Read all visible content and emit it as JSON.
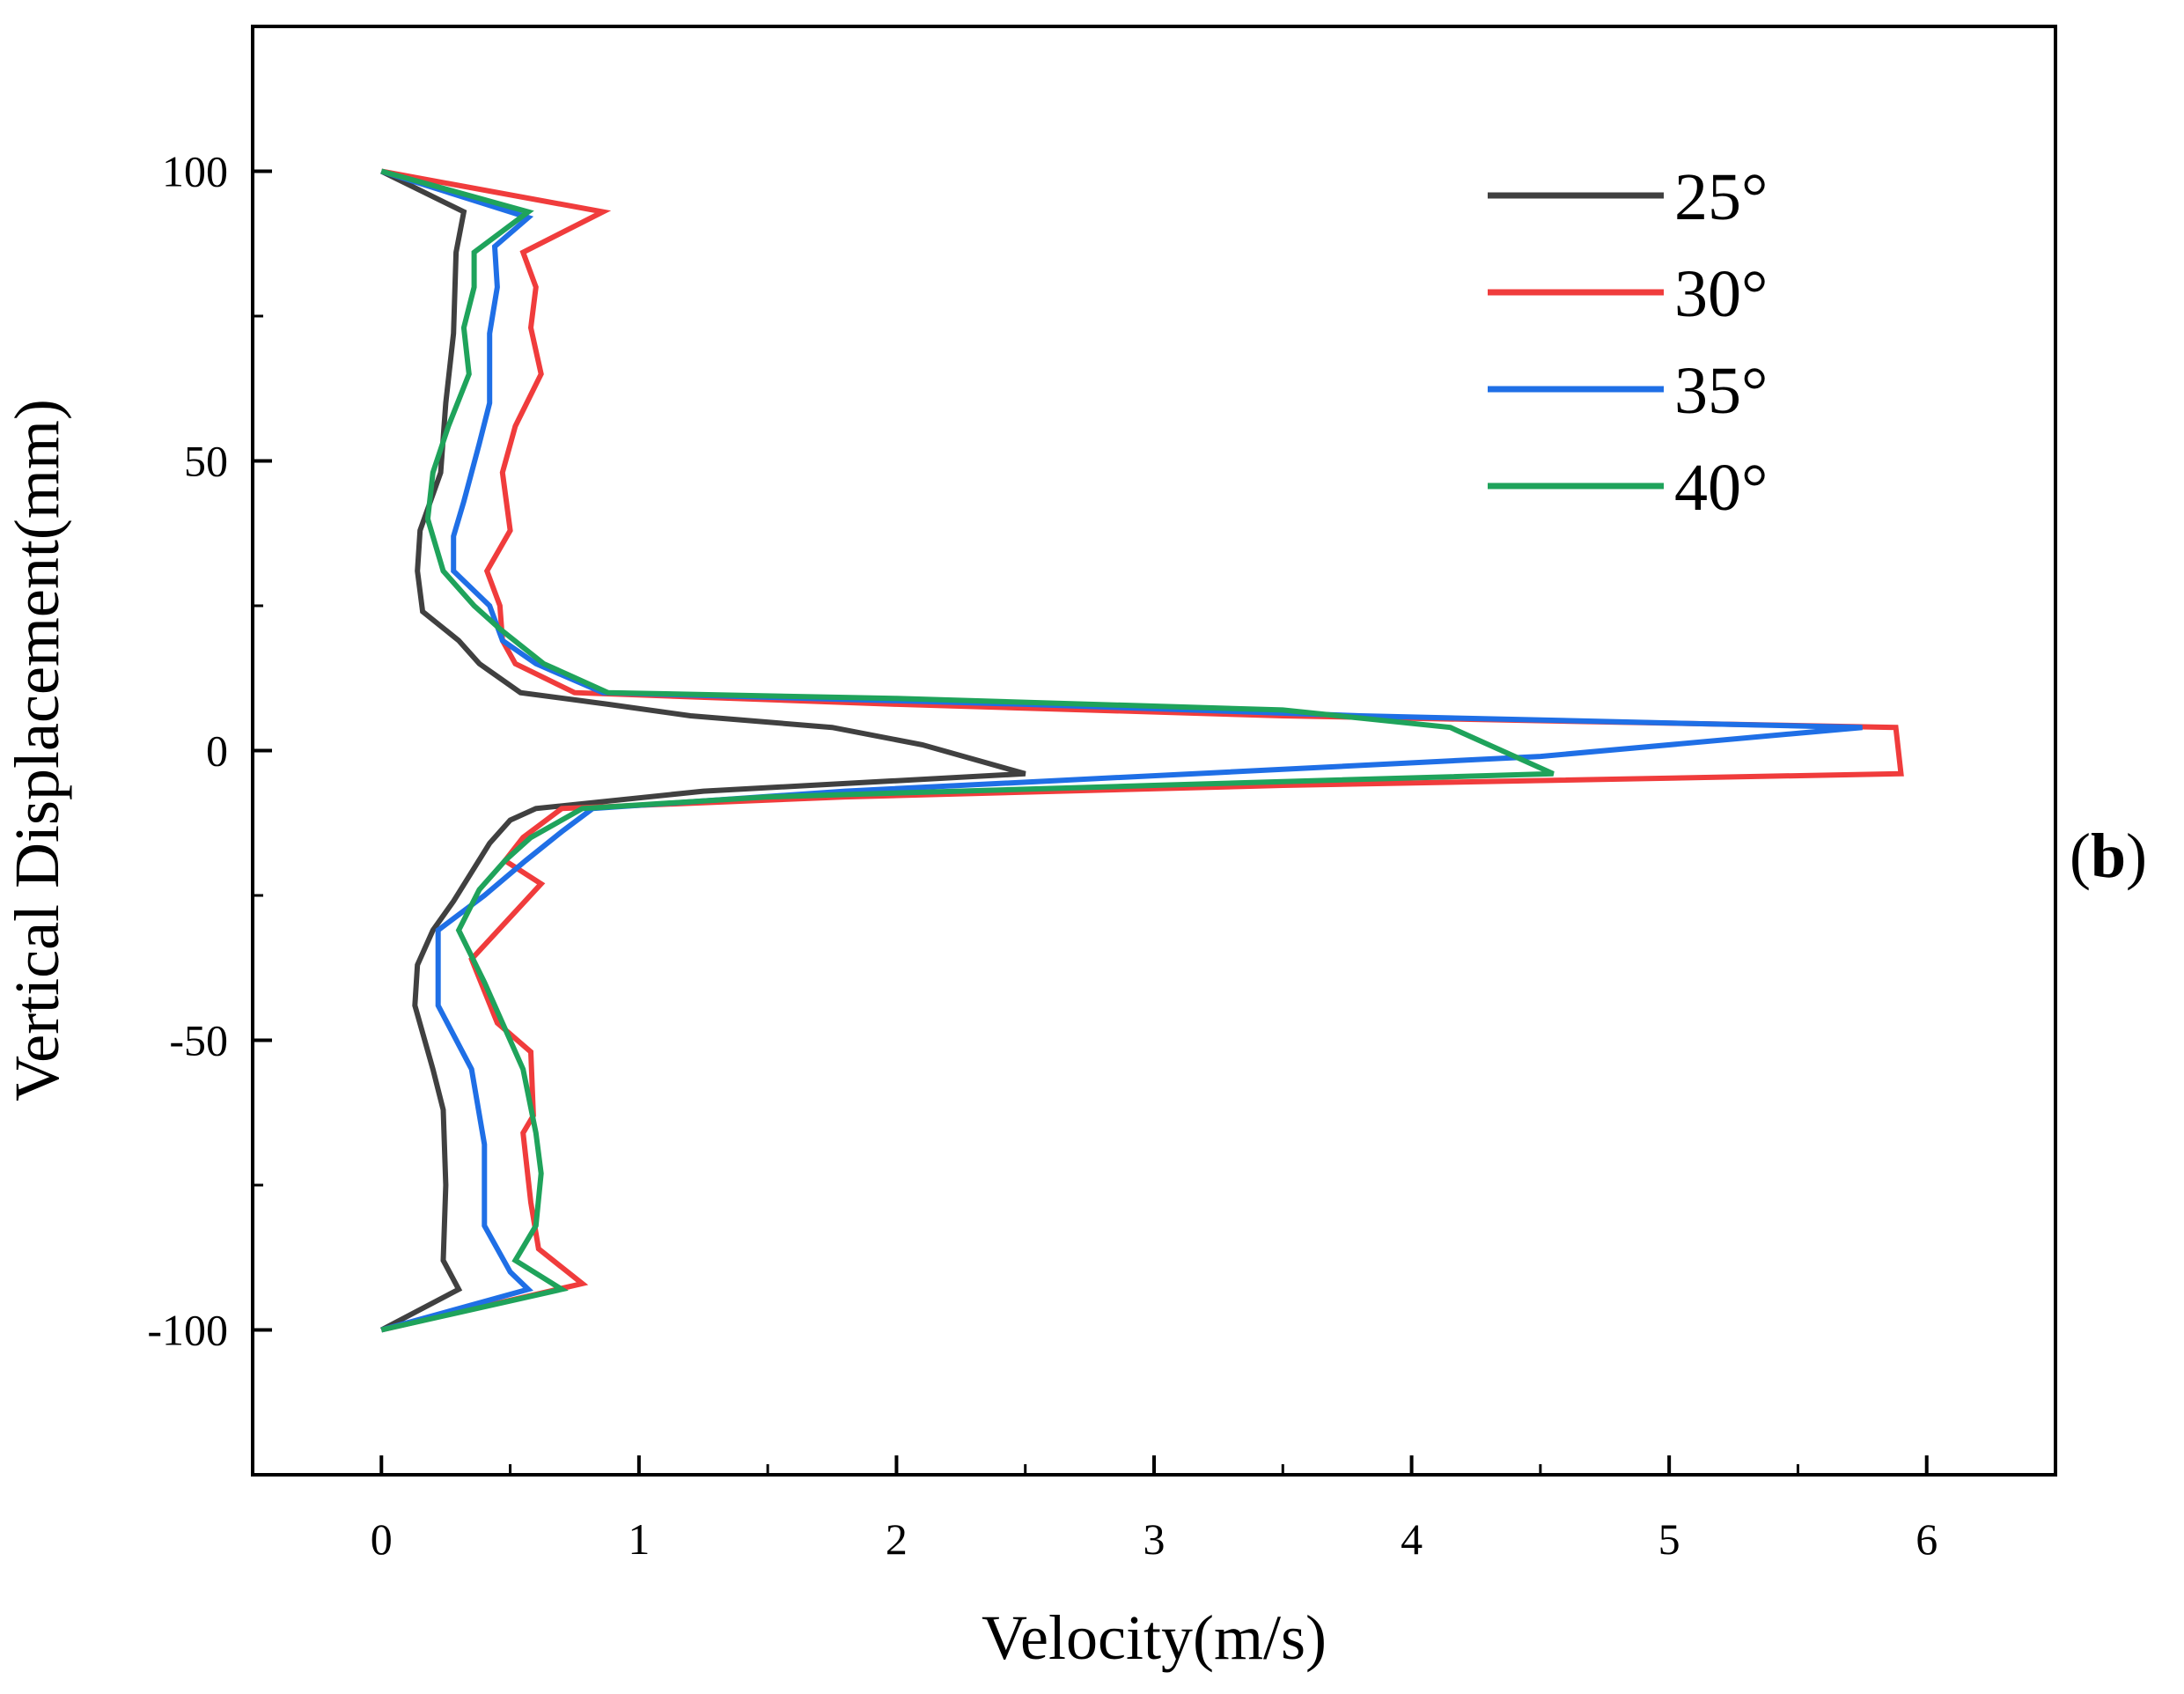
{
  "chart_data": {
    "type": "line",
    "title": "",
    "panel_label": {
      "open": "(",
      "letter": "b",
      "close": ")"
    },
    "xlabel": "Velocity(m/s)",
    "ylabel": "Vertical Displacement(mm)",
    "xlim": [
      -0.5,
      6.5
    ],
    "ylim": [
      -125,
      125
    ],
    "x_ticks": [
      0,
      1,
      2,
      3,
      4,
      5,
      6
    ],
    "x_tick_labels": [
      "0",
      "1",
      "2",
      "3",
      "4",
      "5",
      "6"
    ],
    "y_ticks": [
      -100,
      -50,
      0,
      50,
      100
    ],
    "y_tick_labels": [
      "-100",
      "-50",
      "0",
      "50",
      "100"
    ],
    "legend_position": "top-right",
    "grid": false,
    "series": [
      {
        "name": "25°",
        "color": "#404040",
        "points": [
          [
            0,
            100
          ],
          [
            0.32,
            93
          ],
          [
            0.29,
            86
          ],
          [
            0.28,
            72
          ],
          [
            0.25,
            60
          ],
          [
            0.23,
            48
          ],
          [
            0.15,
            38
          ],
          [
            0.14,
            31
          ],
          [
            0.16,
            24
          ],
          [
            0.3,
            19
          ],
          [
            0.38,
            15
          ],
          [
            0.54,
            10
          ],
          [
            0.88,
            8
          ],
          [
            1.2,
            6
          ],
          [
            1.75,
            4
          ],
          [
            2.1,
            1
          ],
          [
            2.5,
            -4
          ],
          [
            1.25,
            -7
          ],
          [
            0.6,
            -10
          ],
          [
            0.5,
            -12
          ],
          [
            0.42,
            -16
          ],
          [
            0.35,
            -21
          ],
          [
            0.28,
            -26
          ],
          [
            0.2,
            -31
          ],
          [
            0.14,
            -37
          ],
          [
            0.13,
            -44
          ],
          [
            0.2,
            -55
          ],
          [
            0.24,
            -62
          ],
          [
            0.25,
            -75
          ],
          [
            0.24,
            -88
          ],
          [
            0.3,
            -93
          ],
          [
            0,
            -100
          ]
        ]
      },
      {
        "name": "30°",
        "color": "#f03c3c",
        "points": [
          [
            0,
            100
          ],
          [
            0.86,
            93
          ],
          [
            0.55,
            86
          ],
          [
            0.6,
            80
          ],
          [
            0.58,
            73
          ],
          [
            0.62,
            65
          ],
          [
            0.52,
            56
          ],
          [
            0.47,
            48
          ],
          [
            0.5,
            38
          ],
          [
            0.41,
            31
          ],
          [
            0.46,
            25
          ],
          [
            0.47,
            19
          ],
          [
            0.52,
            15
          ],
          [
            0.75,
            10
          ],
          [
            2,
            8
          ],
          [
            3.5,
            6
          ],
          [
            5.88,
            4
          ],
          [
            5.9,
            -4
          ],
          [
            3.5,
            -6
          ],
          [
            1.8,
            -8
          ],
          [
            0.7,
            -10
          ],
          [
            0.55,
            -15
          ],
          [
            0.48,
            -19
          ],
          [
            0.62,
            -23
          ],
          [
            0.35,
            -36
          ],
          [
            0.45,
            -47
          ],
          [
            0.58,
            -52
          ],
          [
            0.59,
            -63
          ],
          [
            0.55,
            -66
          ],
          [
            0.58,
            -78
          ],
          [
            0.61,
            -86
          ],
          [
            0.78,
            -92
          ],
          [
            0,
            -100
          ]
        ]
      },
      {
        "name": "35°",
        "color": "#1f6fe6",
        "points": [
          [
            0,
            100
          ],
          [
            0.57,
            92
          ],
          [
            0.44,
            87
          ],
          [
            0.45,
            80
          ],
          [
            0.42,
            72
          ],
          [
            0.42,
            60
          ],
          [
            0.38,
            53
          ],
          [
            0.32,
            43
          ],
          [
            0.28,
            37
          ],
          [
            0.28,
            31
          ],
          [
            0.42,
            25
          ],
          [
            0.47,
            19
          ],
          [
            0.6,
            15
          ],
          [
            0.86,
            10
          ],
          [
            2.5,
            8
          ],
          [
            3.8,
            6
          ],
          [
            5.75,
            4
          ],
          [
            4.5,
            -1
          ],
          [
            1.8,
            -7
          ],
          [
            0.82,
            -10
          ],
          [
            0.7,
            -14
          ],
          [
            0.56,
            -19
          ],
          [
            0.4,
            -25
          ],
          [
            0.28,
            -29
          ],
          [
            0.22,
            -31
          ],
          [
            0.22,
            -44
          ],
          [
            0.35,
            -55
          ],
          [
            0.4,
            -68
          ],
          [
            0.4,
            -82
          ],
          [
            0.5,
            -90
          ],
          [
            0.57,
            -93
          ],
          [
            0,
            -100
          ]
        ]
      },
      {
        "name": "40°",
        "color": "#1fa35b",
        "points": [
          [
            0,
            100
          ],
          [
            0.57,
            93
          ],
          [
            0.36,
            86
          ],
          [
            0.36,
            80
          ],
          [
            0.32,
            73
          ],
          [
            0.34,
            65
          ],
          [
            0.26,
            56
          ],
          [
            0.2,
            48
          ],
          [
            0.18,
            40
          ],
          [
            0.24,
            31
          ],
          [
            0.36,
            25
          ],
          [
            0.46,
            21
          ],
          [
            0.63,
            15
          ],
          [
            0.88,
            10
          ],
          [
            2,
            9
          ],
          [
            3.5,
            7
          ],
          [
            4.15,
            4
          ],
          [
            4.55,
            -4
          ],
          [
            3,
            -6
          ],
          [
            1.5,
            -8
          ],
          [
            0.78,
            -10
          ],
          [
            0.58,
            -15
          ],
          [
            0.48,
            -19
          ],
          [
            0.38,
            -24
          ],
          [
            0.3,
            -31
          ],
          [
            0.4,
            -40
          ],
          [
            0.47,
            -47
          ],
          [
            0.55,
            -55
          ],
          [
            0.6,
            -66
          ],
          [
            0.62,
            -73
          ],
          [
            0.6,
            -82
          ],
          [
            0.52,
            -88
          ],
          [
            0.7,
            -93
          ],
          [
            0,
            -100
          ]
        ]
      }
    ]
  }
}
